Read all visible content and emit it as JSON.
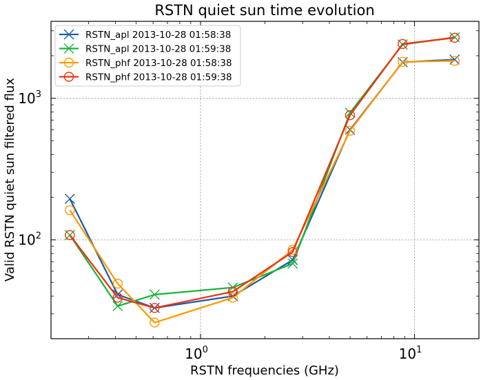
{
  "chart_data": {
    "type": "line",
    "title": "RSTN quiet sun time evolution",
    "xlabel": "RSTN frequencies (GHz)",
    "ylabel": "Valid RSTN quiet sun filtered flux",
    "xscale": "log",
    "yscale": "log",
    "xlim": [
      0.2,
      20
    ],
    "ylim": [
      20,
      3500
    ],
    "x_tick_labels": [
      {
        "value": 1,
        "base": "10",
        "exp": "0"
      },
      {
        "value": 10,
        "base": "10",
        "exp": "1"
      }
    ],
    "y_tick_labels": [
      {
        "value": 100,
        "base": "10",
        "exp": "2"
      },
      {
        "value": 1000,
        "base": "10",
        "exp": "3"
      }
    ],
    "grid": true,
    "legend_position": "top-left",
    "x": [
      0.245,
      0.41,
      0.61,
      1.415,
      2.695,
      4.995,
      8.8,
      15.4
    ],
    "series": [
      {
        "name": "RSTN_apl 2013-10-28 01:58:38",
        "marker": "x",
        "color": "#1a5fa8",
        "values": [
          195,
          41,
          33,
          40,
          72,
          600,
          1800,
          1880
        ]
      },
      {
        "name": "RSTN_apl 2013-10-28 01:59:38",
        "marker": "x",
        "color": "#19b33c",
        "values": [
          108,
          34,
          41,
          46,
          68,
          790,
          2400,
          2700
        ]
      },
      {
        "name": "RSTN_phf 2013-10-28 01:58:38",
        "marker": "o",
        "color": "#ff9900",
        "values": [
          162,
          49,
          26,
          39,
          85,
          590,
          1810,
          1840
        ]
      },
      {
        "name": "RSTN_phf 2013-10-28 01:59:38",
        "marker": "o",
        "color": "#ee3311",
        "values": [
          108,
          39,
          33,
          43,
          82,
          760,
          2420,
          2680
        ]
      }
    ]
  }
}
